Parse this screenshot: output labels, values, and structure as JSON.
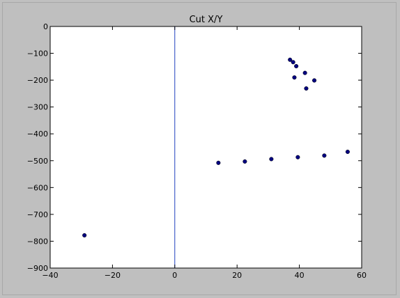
{
  "chart_data": {
    "type": "scatter",
    "title": "Cut X/Y",
    "xlabel": "",
    "ylabel": "",
    "xlim": [
      -40,
      60
    ],
    "ylim": [
      -900,
      0
    ],
    "xticks": [
      -40,
      -20,
      0,
      20,
      40,
      60
    ],
    "xtick_labels": [
      "−40",
      "−20",
      "0",
      "20",
      "40",
      "60"
    ],
    "yticks": [
      0,
      -100,
      -200,
      -300,
      -400,
      -500,
      -600,
      -700,
      -800,
      -900
    ],
    "ytick_labels": [
      "0",
      "−100",
      "−200",
      "−300",
      "−400",
      "−500",
      "−600",
      "−700",
      "−800",
      "−900"
    ],
    "grid": false,
    "vertical_reference_line": {
      "x": 0,
      "color": "#1f3fbf"
    },
    "marker_color": "#000080",
    "series": [
      {
        "points": [
          [
            -29,
            -778
          ],
          [
            14,
            -508
          ],
          [
            22.5,
            -503
          ],
          [
            31,
            -494
          ],
          [
            39.5,
            -487
          ],
          [
            48,
            -481
          ],
          [
            55.5,
            -467
          ],
          [
            37,
            -124
          ],
          [
            38,
            -133
          ],
          [
            39,
            -148
          ],
          [
            41.8,
            -173
          ],
          [
            38.4,
            -190
          ],
          [
            44.8,
            -201
          ],
          [
            42.2,
            -231
          ]
        ]
      }
    ]
  }
}
